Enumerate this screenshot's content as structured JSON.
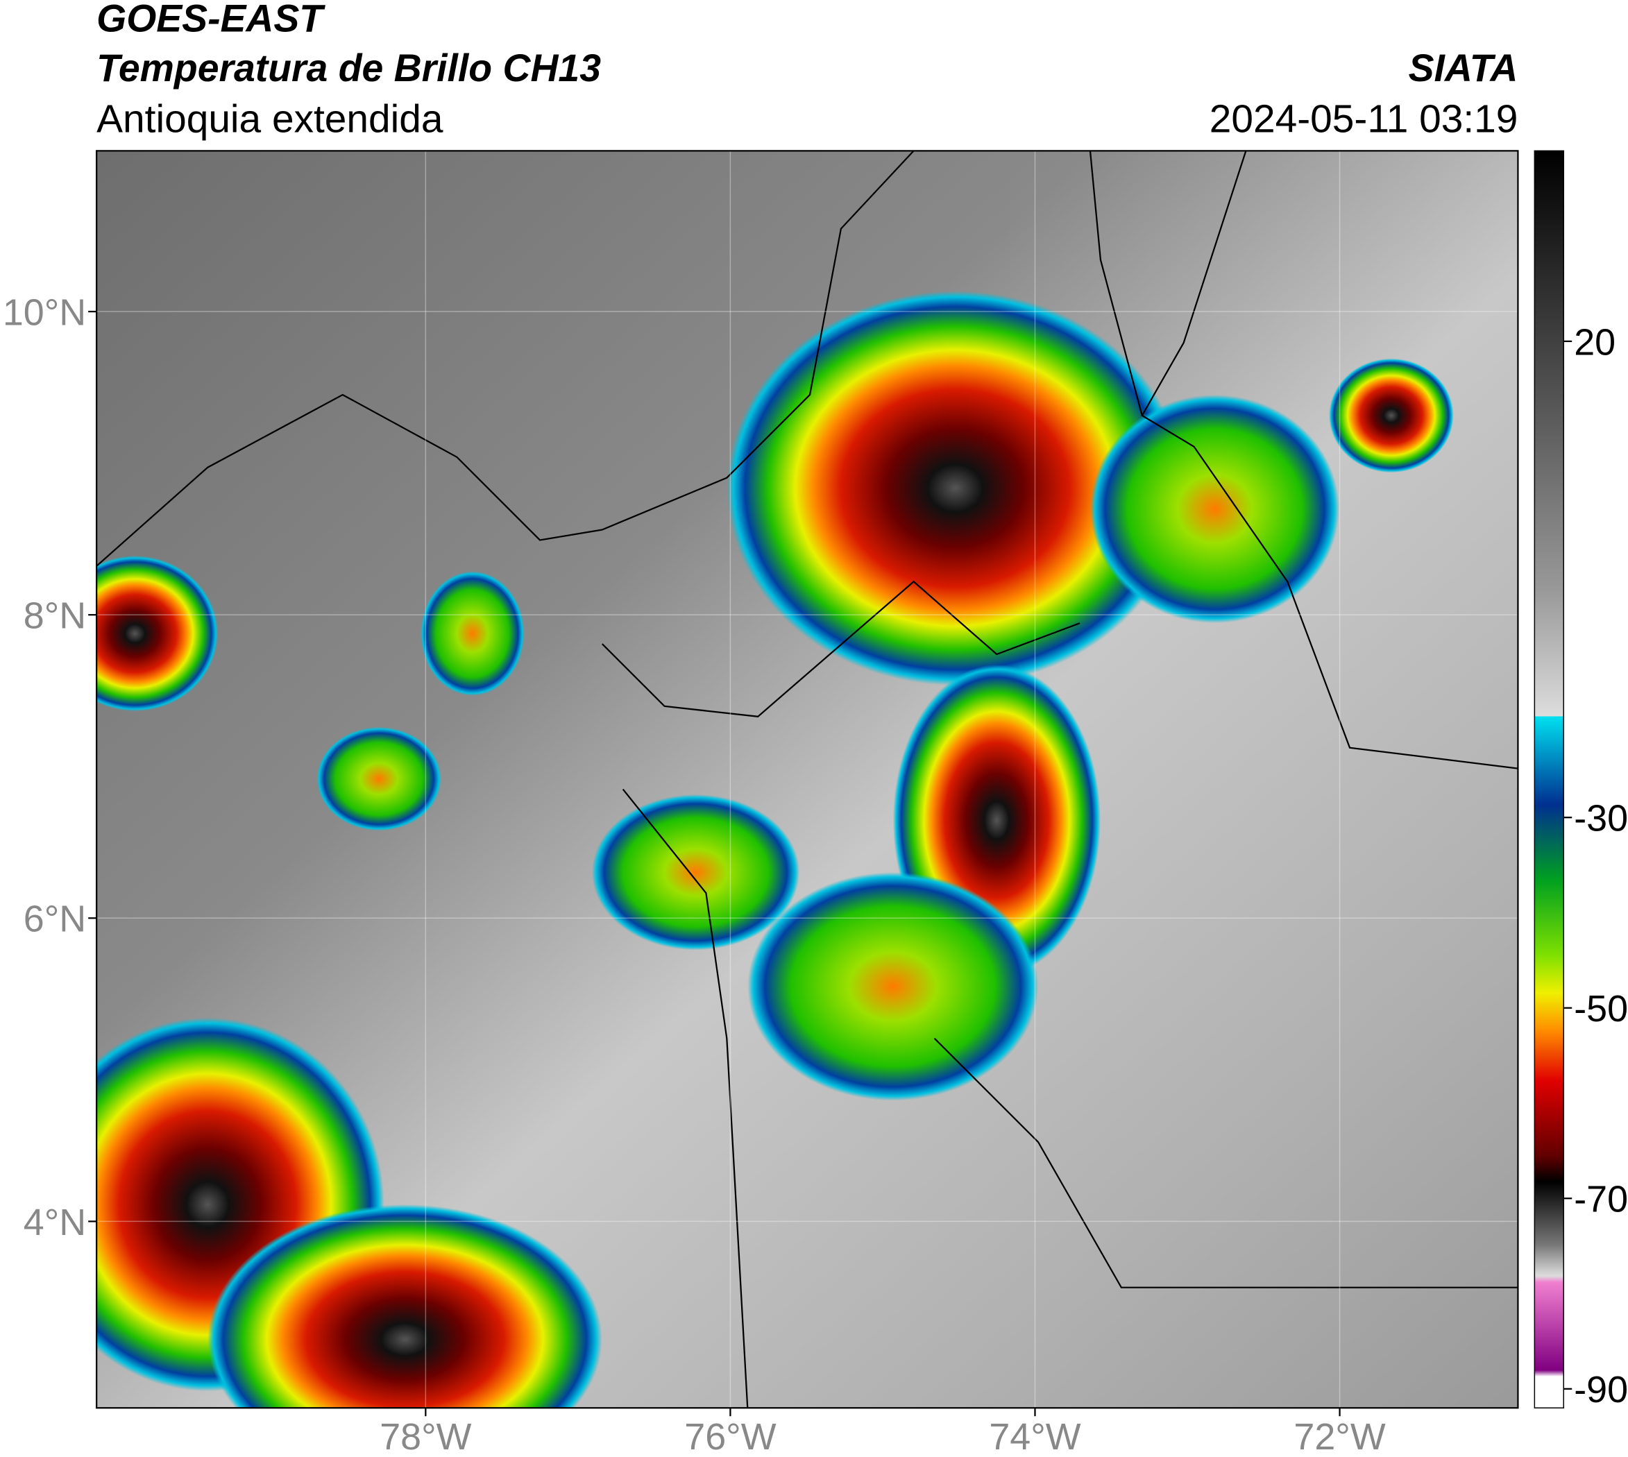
{
  "header": {
    "satellite": "GOES-EAST",
    "product": "Temperatura de Brillo CH13",
    "region": "Antioquia extendida",
    "agency": "SIATA",
    "datetime": "2024-05-11 03:19"
  },
  "map": {
    "xlim": [
      -80.16,
      -70.83
    ],
    "ylim": [
      2.77,
      11.06
    ],
    "xticks": [
      {
        "value": -78,
        "label": "78°W"
      },
      {
        "value": -76,
        "label": "76°W"
      },
      {
        "value": -74,
        "label": "74°W"
      },
      {
        "value": -72,
        "label": "72°W"
      }
    ],
    "yticks": [
      {
        "value": 10,
        "label": "10°N"
      },
      {
        "value": 8,
        "label": "8°N"
      },
      {
        "value": 6,
        "label": "6°N"
      },
      {
        "value": 4,
        "label": "4°N"
      }
    ]
  },
  "colorbar": {
    "lim": [
      -92,
      40
    ],
    "ticks": [
      20,
      -30,
      -50,
      -70,
      -90
    ]
  }
}
